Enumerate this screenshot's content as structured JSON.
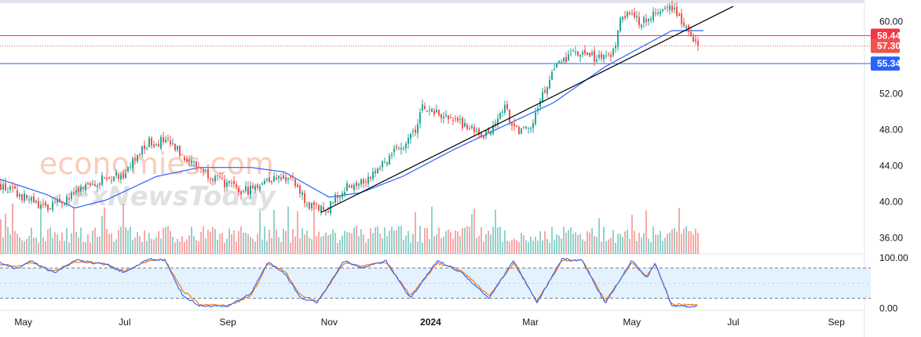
{
  "watermark": {
    "brand": "economies.com",
    "sub": "FxNewsToday"
  },
  "colors": {
    "up": "#26a69a",
    "down": "#ef5350",
    "ma": "#2962ff",
    "trend": "#000000",
    "resistance": "#f23645",
    "support": "#2962ff",
    "stochK": "#2962ff",
    "stochD": "#ff6d00",
    "stochBand": "#e3f2fd"
  },
  "price_badges": [
    {
      "label": "58.44",
      "value": 58.44,
      "color": "#f23645"
    },
    {
      "label": "57.30",
      "value": 57.3,
      "color": "#ef5350"
    },
    {
      "label": "55.34",
      "value": 55.34,
      "color": "#2962ff"
    }
  ],
  "chart_data": [
    {
      "type": "candlestick",
      "y_axis_ticks": [
        "60.00",
        "52.00",
        "48.00",
        "44.00",
        "40.00",
        "36.00"
      ],
      "ylim": [
        34.2,
        62.4
      ],
      "x_axis_ticks": [
        "May",
        "Jul",
        "Sep",
        "Nov",
        "2024",
        "Mar",
        "May",
        "Jul",
        "Sep"
      ],
      "x_axis_bold": [
        "2024"
      ],
      "last_close": 57.3,
      "levels": [
        {
          "name": "resistance",
          "value": 58.44,
          "style": "solid"
        },
        {
          "name": "current",
          "value": 57.3,
          "style": "dotted"
        },
        {
          "name": "support",
          "value": 55.34,
          "style": "solid"
        }
      ],
      "trendline": {
        "from": {
          "x": "2023-10-27",
          "y": 38.8
        },
        "to": {
          "x": "2024-07-01",
          "y": 61.7
        }
      },
      "close_anchors": [
        [
          "2023-04-17",
          41.8
        ],
        [
          "2023-05-01",
          40.5
        ],
        [
          "2023-05-15",
          39.2
        ],
        [
          "2023-06-01",
          40.8
        ],
        [
          "2023-06-15",
          42.3
        ],
        [
          "2023-07-01",
          43.2
        ],
        [
          "2023-07-15",
          46.5
        ],
        [
          "2023-07-25",
          46.8
        ],
        [
          "2023-08-10",
          44.5
        ],
        [
          "2023-08-25",
          42.5
        ],
        [
          "2023-09-10",
          41.0
        ],
        [
          "2023-09-25",
          42.5
        ],
        [
          "2023-10-08",
          42.8
        ],
        [
          "2023-10-20",
          39.4
        ],
        [
          "2023-10-30",
          39.0
        ],
        [
          "2023-11-10",
          41.5
        ],
        [
          "2023-11-25",
          42.8
        ],
        [
          "2023-12-10",
          45.5
        ],
        [
          "2023-12-22",
          47.5
        ],
        [
          "2023-12-26",
          50.5
        ],
        [
          "2024-01-10",
          49.5
        ],
        [
          "2024-01-22",
          48.5
        ],
        [
          "2024-02-01",
          47.0
        ],
        [
          "2024-02-15",
          50.5
        ],
        [
          "2024-02-20",
          48.0
        ],
        [
          "2024-03-01",
          47.8
        ],
        [
          "2024-03-05",
          50.5
        ],
        [
          "2024-03-15",
          54.5
        ],
        [
          "2024-03-25",
          56.5
        ],
        [
          "2024-04-10",
          56.0
        ],
        [
          "2024-04-20",
          56.5
        ],
        [
          "2024-04-25",
          61.0
        ],
        [
          "2024-05-05",
          60.0
        ],
        [
          "2024-05-15",
          61.0
        ],
        [
          "2024-05-25",
          61.8
        ],
        [
          "2024-06-05",
          58.8
        ],
        [
          "2024-06-10",
          57.3
        ]
      ],
      "ma_anchors": [
        [
          "2023-04-17",
          42.5
        ],
        [
          "2023-05-15",
          40.8
        ],
        [
          "2023-06-01",
          39.3
        ],
        [
          "2023-06-20",
          40.2
        ],
        [
          "2023-07-20",
          42.8
        ],
        [
          "2023-08-15",
          43.8
        ],
        [
          "2023-09-15",
          43.8
        ],
        [
          "2023-10-05",
          43.3
        ],
        [
          "2023-11-01",
          40.5
        ],
        [
          "2023-11-20",
          41.0
        ],
        [
          "2023-12-15",
          42.8
        ],
        [
          "2024-01-15",
          45.8
        ],
        [
          "2024-02-15",
          48.5
        ],
        [
          "2024-03-15",
          51.0
        ],
        [
          "2024-04-15",
          55.0
        ],
        [
          "2024-05-05",
          57.0
        ],
        [
          "2024-05-25",
          59.0
        ],
        [
          "2024-06-10",
          59.0
        ]
      ],
      "volume": "bars below price, colored by candle direction"
    },
    {
      "type": "line",
      "indicator": "stochastic",
      "ylim": [
        -4,
        108
      ],
      "y_axis_ticks": [
        "100.00",
        "0.00"
      ],
      "band": [
        20,
        80
      ],
      "k_anchors": [
        [
          "2023-04-17",
          92
        ],
        [
          "2023-04-27",
          78
        ],
        [
          "2023-05-05",
          95
        ],
        [
          "2023-05-20",
          70
        ],
        [
          "2023-06-01",
          96
        ],
        [
          "2023-06-12",
          90
        ],
        [
          "2023-06-20",
          88
        ],
        [
          "2023-07-01",
          70
        ],
        [
          "2023-07-15",
          98
        ],
        [
          "2023-07-25",
          96
        ],
        [
          "2023-08-05",
          25
        ],
        [
          "2023-08-15",
          5
        ],
        [
          "2023-09-01",
          4
        ],
        [
          "2023-09-15",
          30
        ],
        [
          "2023-09-25",
          92
        ],
        [
          "2023-10-05",
          70
        ],
        [
          "2023-10-15",
          20
        ],
        [
          "2023-10-25",
          12
        ],
        [
          "2023-11-10",
          95
        ],
        [
          "2023-11-20",
          80
        ],
        [
          "2023-12-05",
          95
        ],
        [
          "2023-12-20",
          20
        ],
        [
          "2024-01-05",
          95
        ],
        [
          "2024-01-20",
          70
        ],
        [
          "2024-02-05",
          20
        ],
        [
          "2024-02-20",
          95
        ],
        [
          "2024-03-05",
          10
        ],
        [
          "2024-03-20",
          98
        ],
        [
          "2024-04-01",
          95
        ],
        [
          "2024-04-15",
          10
        ],
        [
          "2024-05-01",
          95
        ],
        [
          "2024-05-10",
          60
        ],
        [
          "2024-05-15",
          90
        ],
        [
          "2024-05-25",
          5
        ],
        [
          "2024-06-10",
          4
        ]
      ],
      "d_anchors": [
        [
          "2023-04-17",
          88
        ],
        [
          "2023-04-27",
          82
        ],
        [
          "2023-05-05",
          90
        ],
        [
          "2023-05-20",
          74
        ],
        [
          "2023-06-01",
          92
        ],
        [
          "2023-06-12",
          92
        ],
        [
          "2023-06-20",
          86
        ],
        [
          "2023-07-01",
          74
        ],
        [
          "2023-07-15",
          94
        ],
        [
          "2023-07-25",
          97
        ],
        [
          "2023-08-05",
          35
        ],
        [
          "2023-08-15",
          8
        ],
        [
          "2023-09-01",
          5
        ],
        [
          "2023-09-15",
          25
        ],
        [
          "2023-09-25",
          88
        ],
        [
          "2023-10-05",
          75
        ],
        [
          "2023-10-15",
          25
        ],
        [
          "2023-10-25",
          14
        ],
        [
          "2023-11-10",
          90
        ],
        [
          "2023-11-20",
          84
        ],
        [
          "2023-12-05",
          92
        ],
        [
          "2023-12-20",
          25
        ],
        [
          "2024-01-05",
          90
        ],
        [
          "2024-01-20",
          74
        ],
        [
          "2024-02-05",
          25
        ],
        [
          "2024-02-20",
          90
        ],
        [
          "2024-03-05",
          14
        ],
        [
          "2024-03-20",
          94
        ],
        [
          "2024-04-01",
          96
        ],
        [
          "2024-04-15",
          14
        ],
        [
          "2024-05-01",
          90
        ],
        [
          "2024-05-10",
          64
        ],
        [
          "2024-05-15",
          88
        ],
        [
          "2024-05-25",
          8
        ],
        [
          "2024-06-10",
          6
        ]
      ]
    }
  ]
}
